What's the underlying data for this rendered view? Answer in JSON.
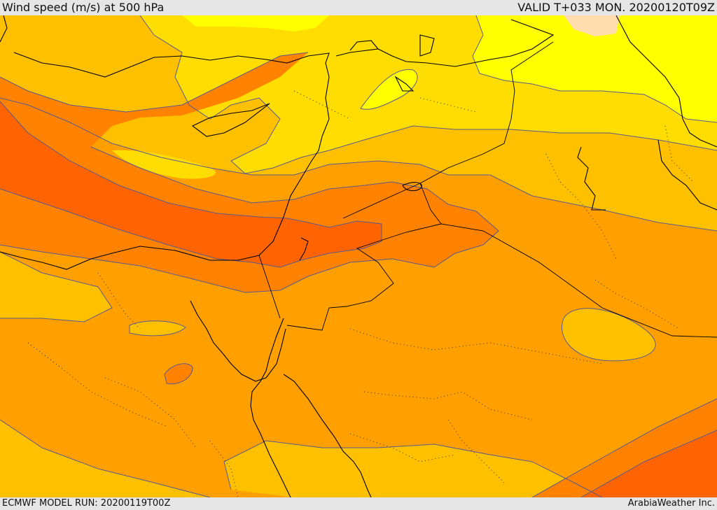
{
  "header": {
    "title": "Wind speed (m/s) at 500 hPa",
    "valid": "VALID T+033 MON. 20200120T09Z"
  },
  "footer": {
    "model_run": "ECMWF MODEL RUN: 20200119T00Z",
    "credit": "ArabiaWeather Inc."
  },
  "map": {
    "variable": "wind speed",
    "level": "500 hPa",
    "colors": {
      "very_low": "#ffff00",
      "low": "#ffdd00",
      "mid_low": "#ffc000",
      "mid": "#ffa000",
      "mid_high": "#ff8200",
      "high": "#ff6400",
      "calm_patch": "#ffdcae",
      "contour": "#5a5a8c",
      "coast": "#000000"
    }
  }
}
